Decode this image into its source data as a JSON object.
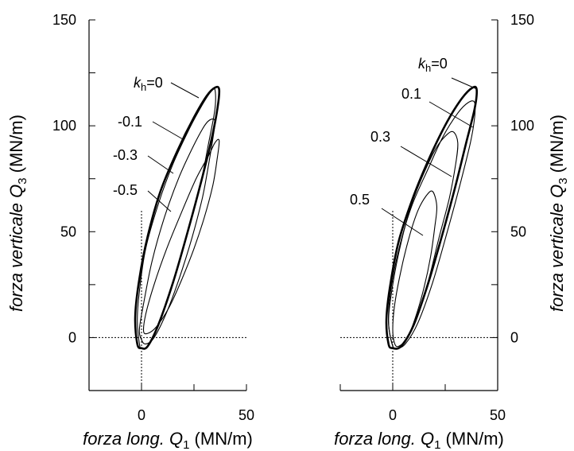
{
  "chart_data": [
    {
      "type": "line",
      "panel": "left",
      "xlabel": {
        "italic": "forza long. Q",
        "sub": "1",
        "unit": " (MN/m)"
      },
      "ylabel": {
        "italic": "forza verticale Q",
        "sub": "3",
        "unit": " (MN/m)"
      },
      "xlim": [
        -25,
        50
      ],
      "ylim": [
        -25,
        150
      ],
      "x_ticks": [
        0,
        50
      ],
      "y_ticks": [
        0,
        50,
        100,
        150
      ],
      "grid": false,
      "reference_lines": {
        "x": 0,
        "y": 0,
        "style": "dotted"
      },
      "series": [
        {
          "name": "k_h=0",
          "label_parts": {
            "k": "k",
            "sub": "h",
            "rest": "=0"
          },
          "peak": [
            37,
            117
          ],
          "bottom": [
            0,
            -5
          ],
          "points": [
            [
              -2,
              -3
            ],
            [
              0,
              -5
            ],
            [
              3,
              -4
            ],
            [
              8,
              6
            ],
            [
              15,
              26
            ],
            [
              22,
              50
            ],
            [
              28,
              72
            ],
            [
              33,
              92
            ],
            [
              36,
              107
            ],
            [
              37,
              117
            ],
            [
              35,
              118
            ],
            [
              31,
              114
            ],
            [
              25,
              104
            ],
            [
              17,
              88
            ],
            [
              9,
              69
            ],
            [
              3,
              48
            ],
            [
              -1,
              28
            ],
            [
              -3,
              10
            ],
            [
              -2,
              -3
            ]
          ]
        },
        {
          "name": "-0.1",
          "peak": [
            35,
            117
          ],
          "bottom": [
            0,
            -5
          ],
          "points": [
            [
              -1,
              -3
            ],
            [
              0,
              -5
            ],
            [
              3,
              -4
            ],
            [
              8,
              6
            ],
            [
              15,
              26
            ],
            [
              22,
              50
            ],
            [
              28,
              72
            ],
            [
              32,
              92
            ],
            [
              35,
              108
            ],
            [
              35,
              117
            ],
            [
              33,
              116
            ],
            [
              29,
              110
            ],
            [
              23,
              99
            ],
            [
              15,
              82
            ],
            [
              8,
              63
            ],
            [
              2,
              42
            ],
            [
              -1,
              22
            ],
            [
              -2,
              8
            ],
            [
              -1,
              -3
            ]
          ]
        },
        {
          "name": "-0.3",
          "peak": [
            35,
            102
          ],
          "bottom": [
            0,
            -3
          ],
          "points": [
            [
              0,
              -1
            ],
            [
              2,
              -3
            ],
            [
              6,
              0
            ],
            [
              12,
              12
            ],
            [
              18,
              28
            ],
            [
              24,
              47
            ],
            [
              29,
              66
            ],
            [
              32,
              82
            ],
            [
              34,
              94
            ],
            [
              35,
              102
            ],
            [
              33,
              103
            ],
            [
              30,
              100
            ],
            [
              25,
              91
            ],
            [
              18,
              76
            ],
            [
              11,
              57
            ],
            [
              5,
              36
            ],
            [
              1,
              16
            ],
            [
              -1,
              4
            ],
            [
              0,
              -1
            ]
          ]
        },
        {
          "name": "-0.5",
          "peak": [
            37,
            93
          ],
          "bottom": [
            1,
            2
          ],
          "points": [
            [
              1,
              3
            ],
            [
              3,
              2
            ],
            [
              7,
              5
            ],
            [
              13,
              14
            ],
            [
              19,
              27
            ],
            [
              25,
              42
            ],
            [
              30,
              57
            ],
            [
              34,
              72
            ],
            [
              36,
              84
            ],
            [
              37,
              93
            ],
            [
              35,
              92
            ],
            [
              32,
              86
            ],
            [
              26,
              75
            ],
            [
              19,
              59
            ],
            [
              12,
              42
            ],
            [
              6,
              25
            ],
            [
              2,
              11
            ],
            [
              1,
              3
            ]
          ]
        }
      ],
      "labels": [
        "k",
        "h",
        "=0",
        "-0.1",
        "-0.3",
        "-0.5"
      ]
    },
    {
      "type": "line",
      "panel": "right",
      "xlabel": {
        "italic": "forza long. Q",
        "sub": "1",
        "unit": " (MN/m)"
      },
      "ylabel": {
        "italic": "forza verticale Q",
        "sub": "3",
        "unit": " (MN/m)"
      },
      "xlim": [
        -25,
        50
      ],
      "ylim": [
        -25,
        150
      ],
      "x_ticks": [
        0,
        50
      ],
      "y_ticks": [
        0,
        50,
        100,
        150
      ],
      "grid": false,
      "reference_lines": {
        "x": 0,
        "y": 0,
        "style": "dotted"
      },
      "series": [
        {
          "name": "k_h=0",
          "label_parts": {
            "k": "k",
            "sub": "h",
            "rest": "=0"
          },
          "peak": [
            40,
            117
          ],
          "bottom": [
            0,
            -5
          ],
          "points": [
            [
              -2,
              -3
            ],
            [
              0,
              -5
            ],
            [
              4,
              -4
            ],
            [
              10,
              6
            ],
            [
              17,
              26
            ],
            [
              24,
              50
            ],
            [
              30,
              72
            ],
            [
              35,
              92
            ],
            [
              39,
              108
            ],
            [
              40,
              117
            ],
            [
              38,
              118
            ],
            [
              33,
              113
            ],
            [
              26,
              102
            ],
            [
              18,
              86
            ],
            [
              10,
              67
            ],
            [
              3,
              46
            ],
            [
              -1,
              26
            ],
            [
              -3,
              9
            ],
            [
              -2,
              -3
            ]
          ]
        },
        {
          "name": "0.1",
          "peak": [
            39,
            111
          ],
          "bottom": [
            1,
            -5
          ],
          "points": [
            [
              0,
              -4
            ],
            [
              2,
              -5
            ],
            [
              6,
              -3
            ],
            [
              12,
              7
            ],
            [
              19,
              26
            ],
            [
              26,
              50
            ],
            [
              32,
              72
            ],
            [
              37,
              92
            ],
            [
              39,
              104
            ],
            [
              39,
              111
            ],
            [
              36,
              111
            ],
            [
              31,
              106
            ],
            [
              24,
              95
            ],
            [
              17,
              80
            ],
            [
              9,
              62
            ],
            [
              3,
              42
            ],
            [
              -1,
              22
            ],
            [
              -2,
              7
            ],
            [
              0,
              -4
            ]
          ]
        },
        {
          "name": "0.3",
          "peak": [
            29,
            97
          ],
          "bottom": [
            1,
            -5
          ],
          "points": [
            [
              0,
              -4
            ],
            [
              2,
              -5
            ],
            [
              6,
              -2
            ],
            [
              11,
              9
            ],
            [
              17,
              27
            ],
            [
              22,
              47
            ],
            [
              27,
              66
            ],
            [
              30,
              82
            ],
            [
              31,
              92
            ],
            [
              29,
              97
            ],
            [
              26,
              96
            ],
            [
              21,
              90
            ],
            [
              15,
              78
            ],
            [
              9,
              63
            ],
            [
              4,
              45
            ],
            [
              0,
              25
            ],
            [
              -2,
              8
            ],
            [
              0,
              -4
            ]
          ]
        },
        {
          "name": "0.5",
          "peak": [
            19,
            69
          ],
          "bottom": [
            2,
            -4
          ],
          "points": [
            [
              1,
              -3
            ],
            [
              3,
              -4
            ],
            [
              7,
              0
            ],
            [
              11,
              10
            ],
            [
              15,
              24
            ],
            [
              18,
              38
            ],
            [
              20,
              52
            ],
            [
              21,
              62
            ],
            [
              19,
              69
            ],
            [
              16,
              67
            ],
            [
              12,
              60
            ],
            [
              8,
              48
            ],
            [
              4,
              32
            ],
            [
              1,
              16
            ],
            [
              0,
              4
            ],
            [
              1,
              -3
            ]
          ]
        }
      ],
      "labels": [
        "k",
        "h",
        "=0",
        "0.1",
        "0.3",
        "0.5"
      ]
    }
  ]
}
